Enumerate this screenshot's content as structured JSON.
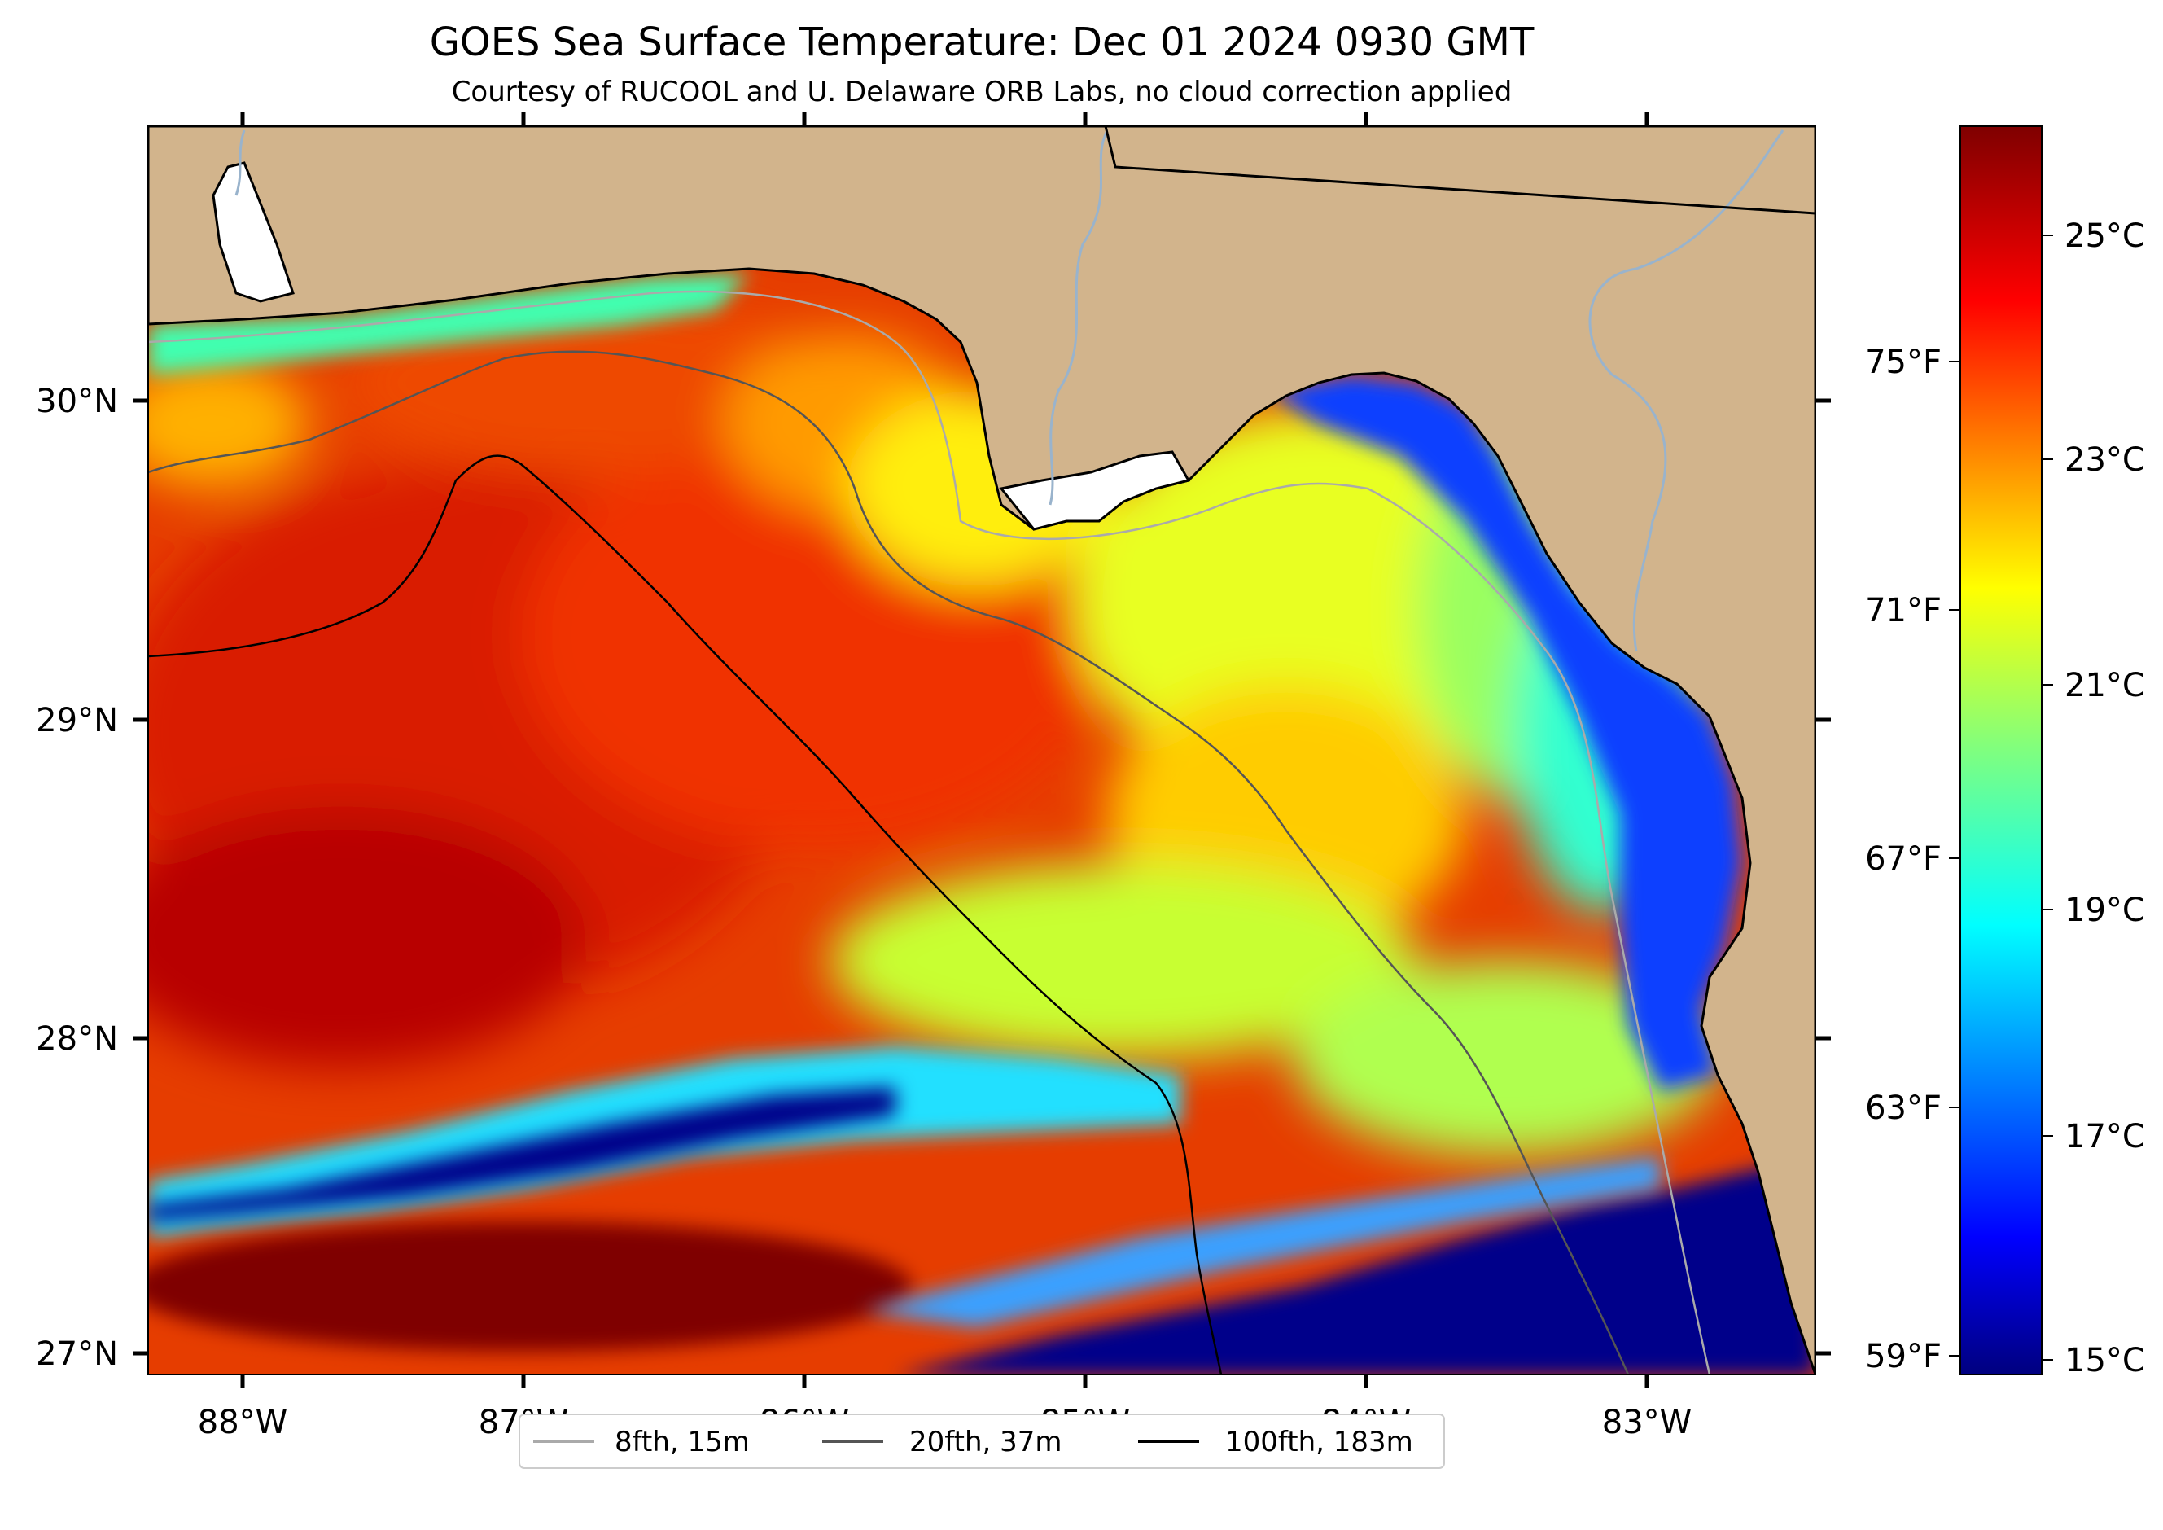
{
  "title": "GOES Sea Surface Temperature: Dec 01 2024 0930 GMT",
  "subtitle": "Courtesy of RUCOOL and U. Delaware ORB Labs, no cloud correction applied",
  "map": {
    "lon_range": [
      -88.33,
      -82.4
    ],
    "lat_range": [
      26.93,
      30.85
    ],
    "lon_ticks": [
      "88°W",
      "87°W",
      "86°W",
      "85°W",
      "84°W",
      "83°W"
    ],
    "lat_ticks": [
      "30°N",
      "29°N",
      "28°N",
      "27°N"
    ],
    "colors": {
      "land": "#d2b48c",
      "coast": "#000000",
      "rivers": "#99b3cc"
    }
  },
  "colorbar": {
    "colormap": "jet",
    "range_c": [
      14.8,
      26.1
    ],
    "celsius_ticks": [
      "25°C",
      "23°C",
      "21°C",
      "19°C",
      "17°C",
      "15°C"
    ],
    "fahrenheit_ticks": [
      "75°F",
      "71°F",
      "67°F",
      "63°F",
      "59°F"
    ]
  },
  "legend": {
    "items": [
      {
        "label": "8fth, 15m",
        "color": "#aaaaaa"
      },
      {
        "label": "20fth, 37m",
        "color": "#555555"
      },
      {
        "label": "100fth, 183m",
        "color": "#000000"
      }
    ]
  }
}
